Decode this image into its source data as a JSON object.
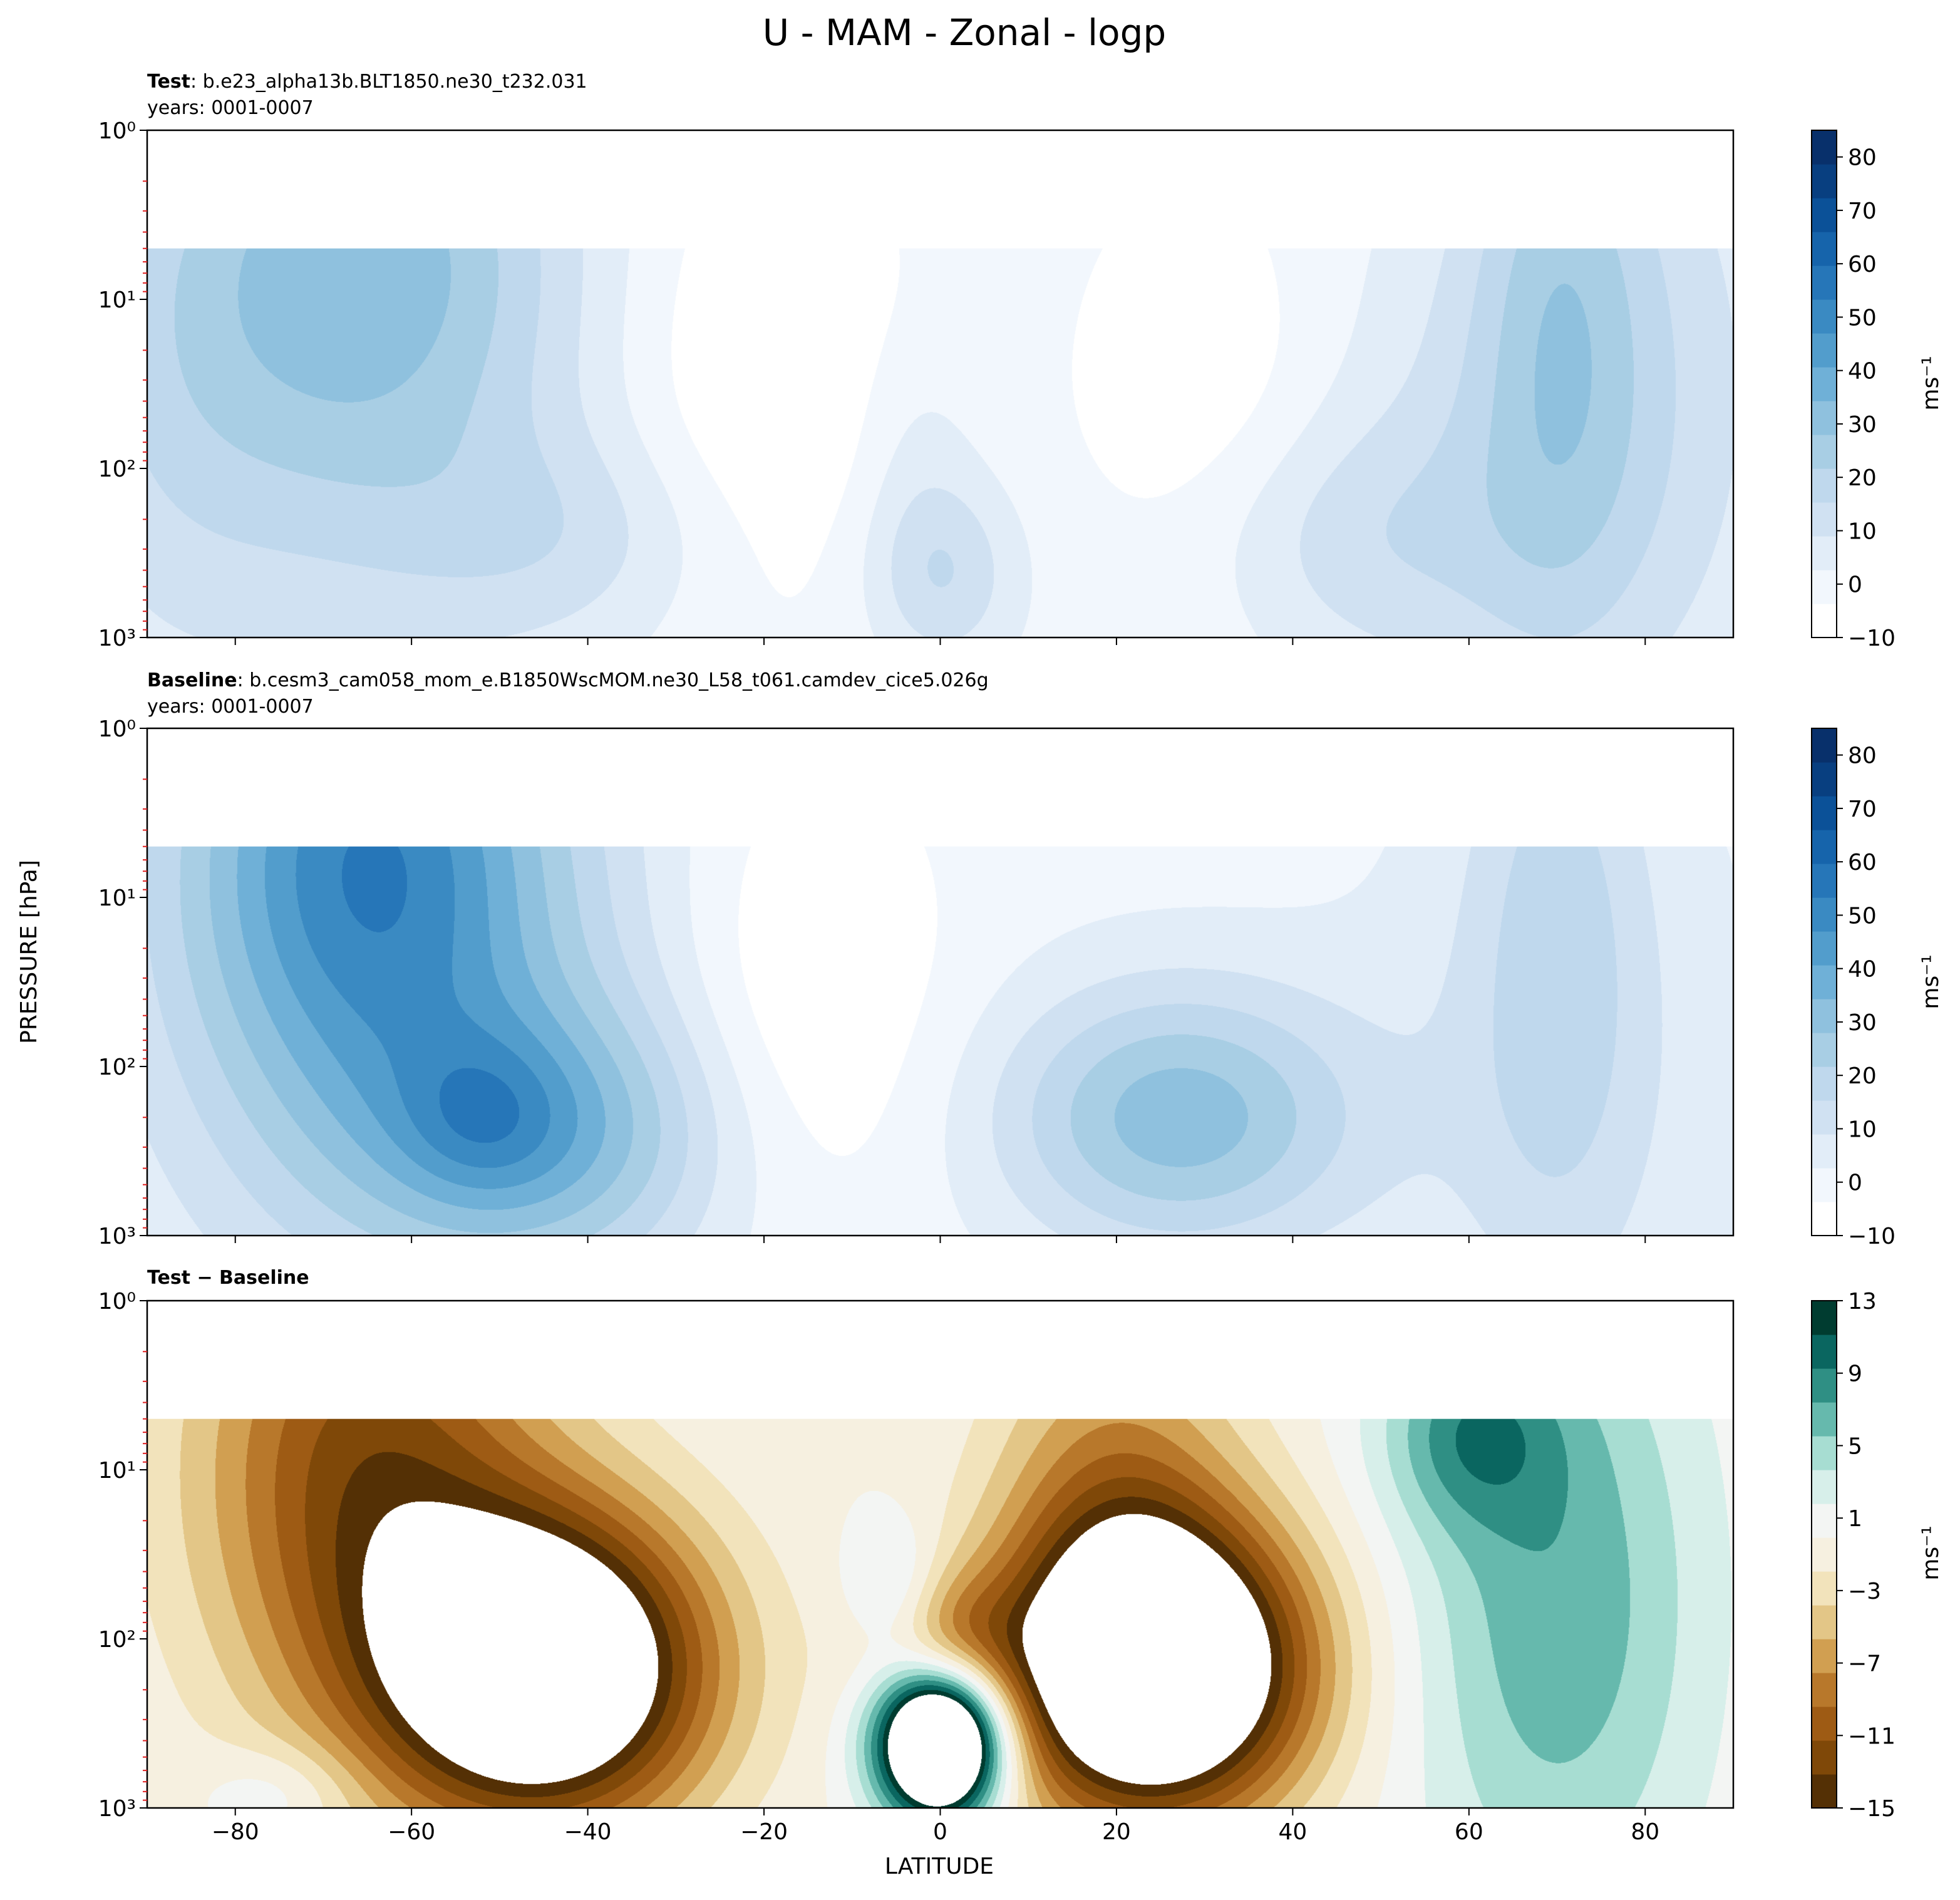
{
  "figure": {
    "title": "U - MAM - Zonal - logp",
    "ylabel": "PRESSURE [hPa]",
    "xlabel": "LATITUDE"
  },
  "panels": [
    {
      "id": "test",
      "title_bold": "Test",
      "title_rest": ": b.e23_alpha13b.BLT1850.ne30_t232.031",
      "subtitle": "years: 0001-0007",
      "cbar_label": "ms⁻¹",
      "cbar_ticks": [
        "−10",
        "0",
        "10",
        "20",
        "30",
        "40",
        "50",
        "60",
        "70",
        "80"
      ]
    },
    {
      "id": "baseline",
      "title_bold": "Baseline",
      "title_rest": ": b.cesm3_cam058_mom_e.B1850WscMOM.ne30_L58_t061.camdev_cice5.026g",
      "subtitle": "years: 0001-0007",
      "cbar_label": "ms⁻¹",
      "cbar_ticks": [
        "−10",
        "0",
        "10",
        "20",
        "30",
        "40",
        "50",
        "60",
        "70",
        "80"
      ]
    },
    {
      "id": "diff",
      "title_bold": "Test − Baseline",
      "title_rest": "",
      "subtitle": "",
      "cbar_label": "ms⁻¹",
      "cbar_ticks": [
        "−15",
        "−11",
        "−7",
        "−3",
        "1",
        "5",
        "9",
        "13"
      ]
    }
  ],
  "colors": {
    "blues": [
      "#ffffff",
      "#f2f7fd",
      "#e2edf8",
      "#d0e1f2",
      "#bfd8ed",
      "#a8cee4",
      "#8fc1de",
      "#6fb0d7",
      "#529dcc",
      "#3a8ac2",
      "#2676b8",
      "#1664ab",
      "#0b5198",
      "#083f80",
      "#08306b"
    ],
    "brbg": [
      "#543005",
      "#7f4808",
      "#9e5b14",
      "#b8782b",
      "#d19f51",
      "#e3c687",
      "#f2e3bb",
      "#f6f0e0",
      "#f3f5f3",
      "#d7efea",
      "#a7ddd2",
      "#66b9ad",
      "#2f8f84",
      "#0a6660",
      "#003c30"
    ]
  },
  "chart_data": {
    "type": "heatmap",
    "plot_style": "filled contour (contourf), latitude-pressure cross section",
    "x": {
      "label": "LATITUDE",
      "lim": [
        -90,
        90
      ],
      "ticks": [
        -80,
        -60,
        -40,
        -20,
        0,
        20,
        40,
        60,
        80
      ],
      "ticklabels": [
        "−80",
        "−60",
        "−40",
        "−20",
        "0",
        "20",
        "40",
        "60",
        "80"
      ]
    },
    "y": {
      "label": "PRESSURE [hPa]",
      "scale": "log",
      "inverted": true,
      "lim": [
        1000,
        1
      ],
      "ticks": [
        1,
        10,
        100,
        1000
      ],
      "ticklabels": [
        "10⁰",
        "10¹",
        "10²",
        "10³"
      ],
      "data_top_hPa": 5
    },
    "panels": [
      {
        "name": "Test",
        "colormap": "Blues",
        "levels": [
          -10,
          85
        ],
        "colorbar_ticks": [
          -10,
          0,
          10,
          20,
          30,
          40,
          50,
          60,
          70,
          80
        ],
        "blobs": [
          {
            "lat": -65,
            "p": 5,
            "sx": 16,
            "sp": 1.0,
            "amp": 26
          },
          {
            "lat": -70,
            "p": 60,
            "sx": 22,
            "sp": 1.4,
            "amp": 10
          },
          {
            "lat": -88,
            "p": 30,
            "sx": 10,
            "sp": 1.2,
            "amp": 6
          },
          {
            "lat": -42,
            "p": 250,
            "sx": 14,
            "sp": 0.45,
            "amp": 10
          },
          {
            "lat": 0,
            "p": 420,
            "sx": 6,
            "sp": 0.4,
            "amp": 16
          },
          {
            "lat": -3,
            "p": 70,
            "sx": 5,
            "sp": 0.5,
            "amp": 6
          },
          {
            "lat": 45,
            "p": 250,
            "sx": 14,
            "sp": 0.5,
            "amp": 10
          },
          {
            "lat": 70,
            "p": 10,
            "sx": 7,
            "sp": 1.3,
            "amp": 16
          },
          {
            "lat": 65,
            "p": 100,
            "sx": 18,
            "sp": 1.2,
            "amp": 10
          },
          {
            "lat": 80,
            "p": 15,
            "sx": 12,
            "sp": 1.5,
            "amp": 8
          },
          {
            "lat": -20,
            "p": 30,
            "sx": 12,
            "sp": 1.1,
            "amp": -12
          },
          {
            "lat": 30,
            "p": 40,
            "sx": 11,
            "sp": 1.0,
            "amp": -10
          }
        ]
      },
      {
        "name": "Baseline",
        "colormap": "Blues",
        "levels": [
          -10,
          85
        ],
        "colorbar_ticks": [
          -10,
          0,
          10,
          20,
          30,
          40,
          50,
          60,
          70,
          80
        ],
        "blobs": [
          {
            "lat": -65,
            "p": 5,
            "sx": 15,
            "sp": 1.1,
            "amp": 42
          },
          {
            "lat": -60,
            "p": 60,
            "sx": 22,
            "sp": 1.5,
            "amp": 16
          },
          {
            "lat": -45,
            "p": 250,
            "sx": 14,
            "sp": 0.55,
            "amp": 26
          },
          {
            "lat": -52,
            "p": 200,
            "sx": 6,
            "sp": 0.3,
            "amp": 10
          },
          {
            "lat": 27,
            "p": 200,
            "sx": 14,
            "sp": 0.55,
            "amp": 32
          },
          {
            "lat": 70,
            "p": 15,
            "sx": 7,
            "sp": 1.4,
            "amp": 14
          },
          {
            "lat": 70,
            "p": 100,
            "sx": 16,
            "sp": 1.3,
            "amp": 8
          },
          {
            "lat": -15,
            "p": 35,
            "sx": 11,
            "sp": 1.0,
            "amp": -12
          }
        ]
      },
      {
        "name": "Test − Baseline",
        "colormap": "BrBG",
        "levels": [
          -15,
          13
        ],
        "colorbar_ticks": [
          -15,
          -11,
          -7,
          -3,
          1,
          5,
          9,
          13
        ],
        "blobs": [
          {
            "lat": -45,
            "p": 150,
            "sx": 13,
            "sp": 0.65,
            "amp": -24
          },
          {
            "lat": -65,
            "p": 10,
            "sx": 14,
            "sp": 1.1,
            "amp": -12
          },
          {
            "lat": 25,
            "p": 150,
            "sx": 12,
            "sp": 0.6,
            "amp": -24
          },
          {
            "lat": 20,
            "p": 25,
            "sx": 10,
            "sp": 1.0,
            "amp": -8
          },
          {
            "lat": 0,
            "p": 400,
            "sx": 5,
            "sp": 0.32,
            "amp": 30
          },
          {
            "lat": 0,
            "p": 110,
            "sx": 6,
            "sp": 0.3,
            "amp": -8
          },
          {
            "lat": -5,
            "p": 60,
            "sx": 4,
            "sp": 0.3,
            "amp": 5
          },
          {
            "lat": 70,
            "p": 60,
            "sx": 12,
            "sp": 1.4,
            "amp": 7
          },
          {
            "lat": 60,
            "p": 6,
            "sx": 7,
            "sp": 0.4,
            "amp": 6
          },
          {
            "lat": -75,
            "p": 800,
            "sx": 6,
            "sp": 0.2,
            "amp": 3
          }
        ]
      }
    ]
  }
}
